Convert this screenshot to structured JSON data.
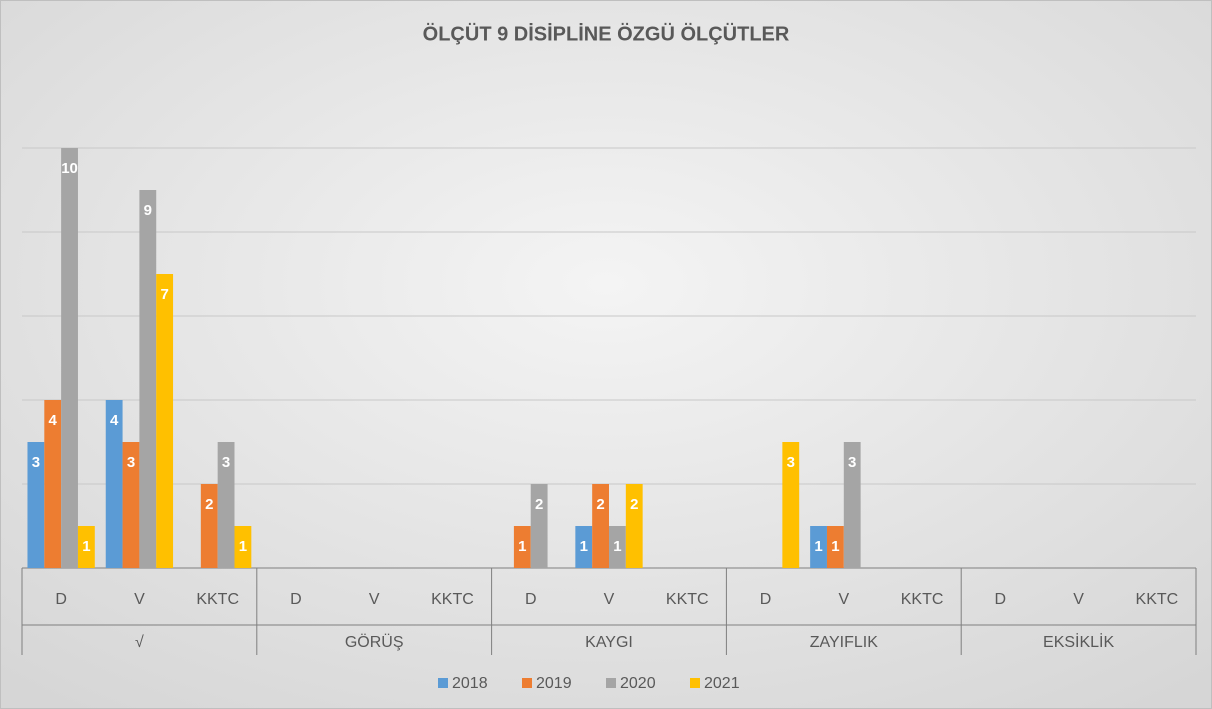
{
  "chart_data": {
    "type": "bar",
    "title": "ÖLÇÜT 9 DİSİPLİNE ÖZGÜ ÖLÇÜTLER",
    "categories": [
      "D",
      "V",
      "KKTC",
      "D",
      "V",
      "KKTC",
      "D",
      "V",
      "KKTC",
      "D",
      "V",
      "KKTC",
      "D",
      "V",
      "KKTC"
    ],
    "groups": [
      "√",
      "GÖRÜŞ",
      "KAYGI",
      "ZAYIFLIK",
      "EKSİKLİK"
    ],
    "series": [
      {
        "name": "2018",
        "color": "#5b9bd5",
        "values": [
          3,
          4,
          null,
          null,
          null,
          null,
          null,
          1,
          null,
          null,
          1,
          null,
          null,
          null,
          null
        ]
      },
      {
        "name": "2019",
        "color": "#ed7d31",
        "values": [
          4,
          3,
          2,
          null,
          null,
          null,
          1,
          2,
          null,
          null,
          1,
          null,
          null,
          null,
          null
        ]
      },
      {
        "name": "2020",
        "color": "#a5a5a5",
        "values": [
          10,
          9,
          3,
          null,
          null,
          null,
          2,
          1,
          null,
          null,
          3,
          null,
          null,
          null,
          null
        ]
      },
      {
        "name": "2021",
        "color": "#ffc000",
        "values": [
          1,
          7,
          1,
          null,
          null,
          null,
          null,
          2,
          null,
          3,
          null,
          null,
          null,
          null,
          null
        ]
      }
    ],
    "ylim": [
      0,
      10
    ],
    "yticks": [
      0,
      2,
      4,
      6,
      8,
      10
    ],
    "grid": true,
    "legend": "bottom"
  }
}
